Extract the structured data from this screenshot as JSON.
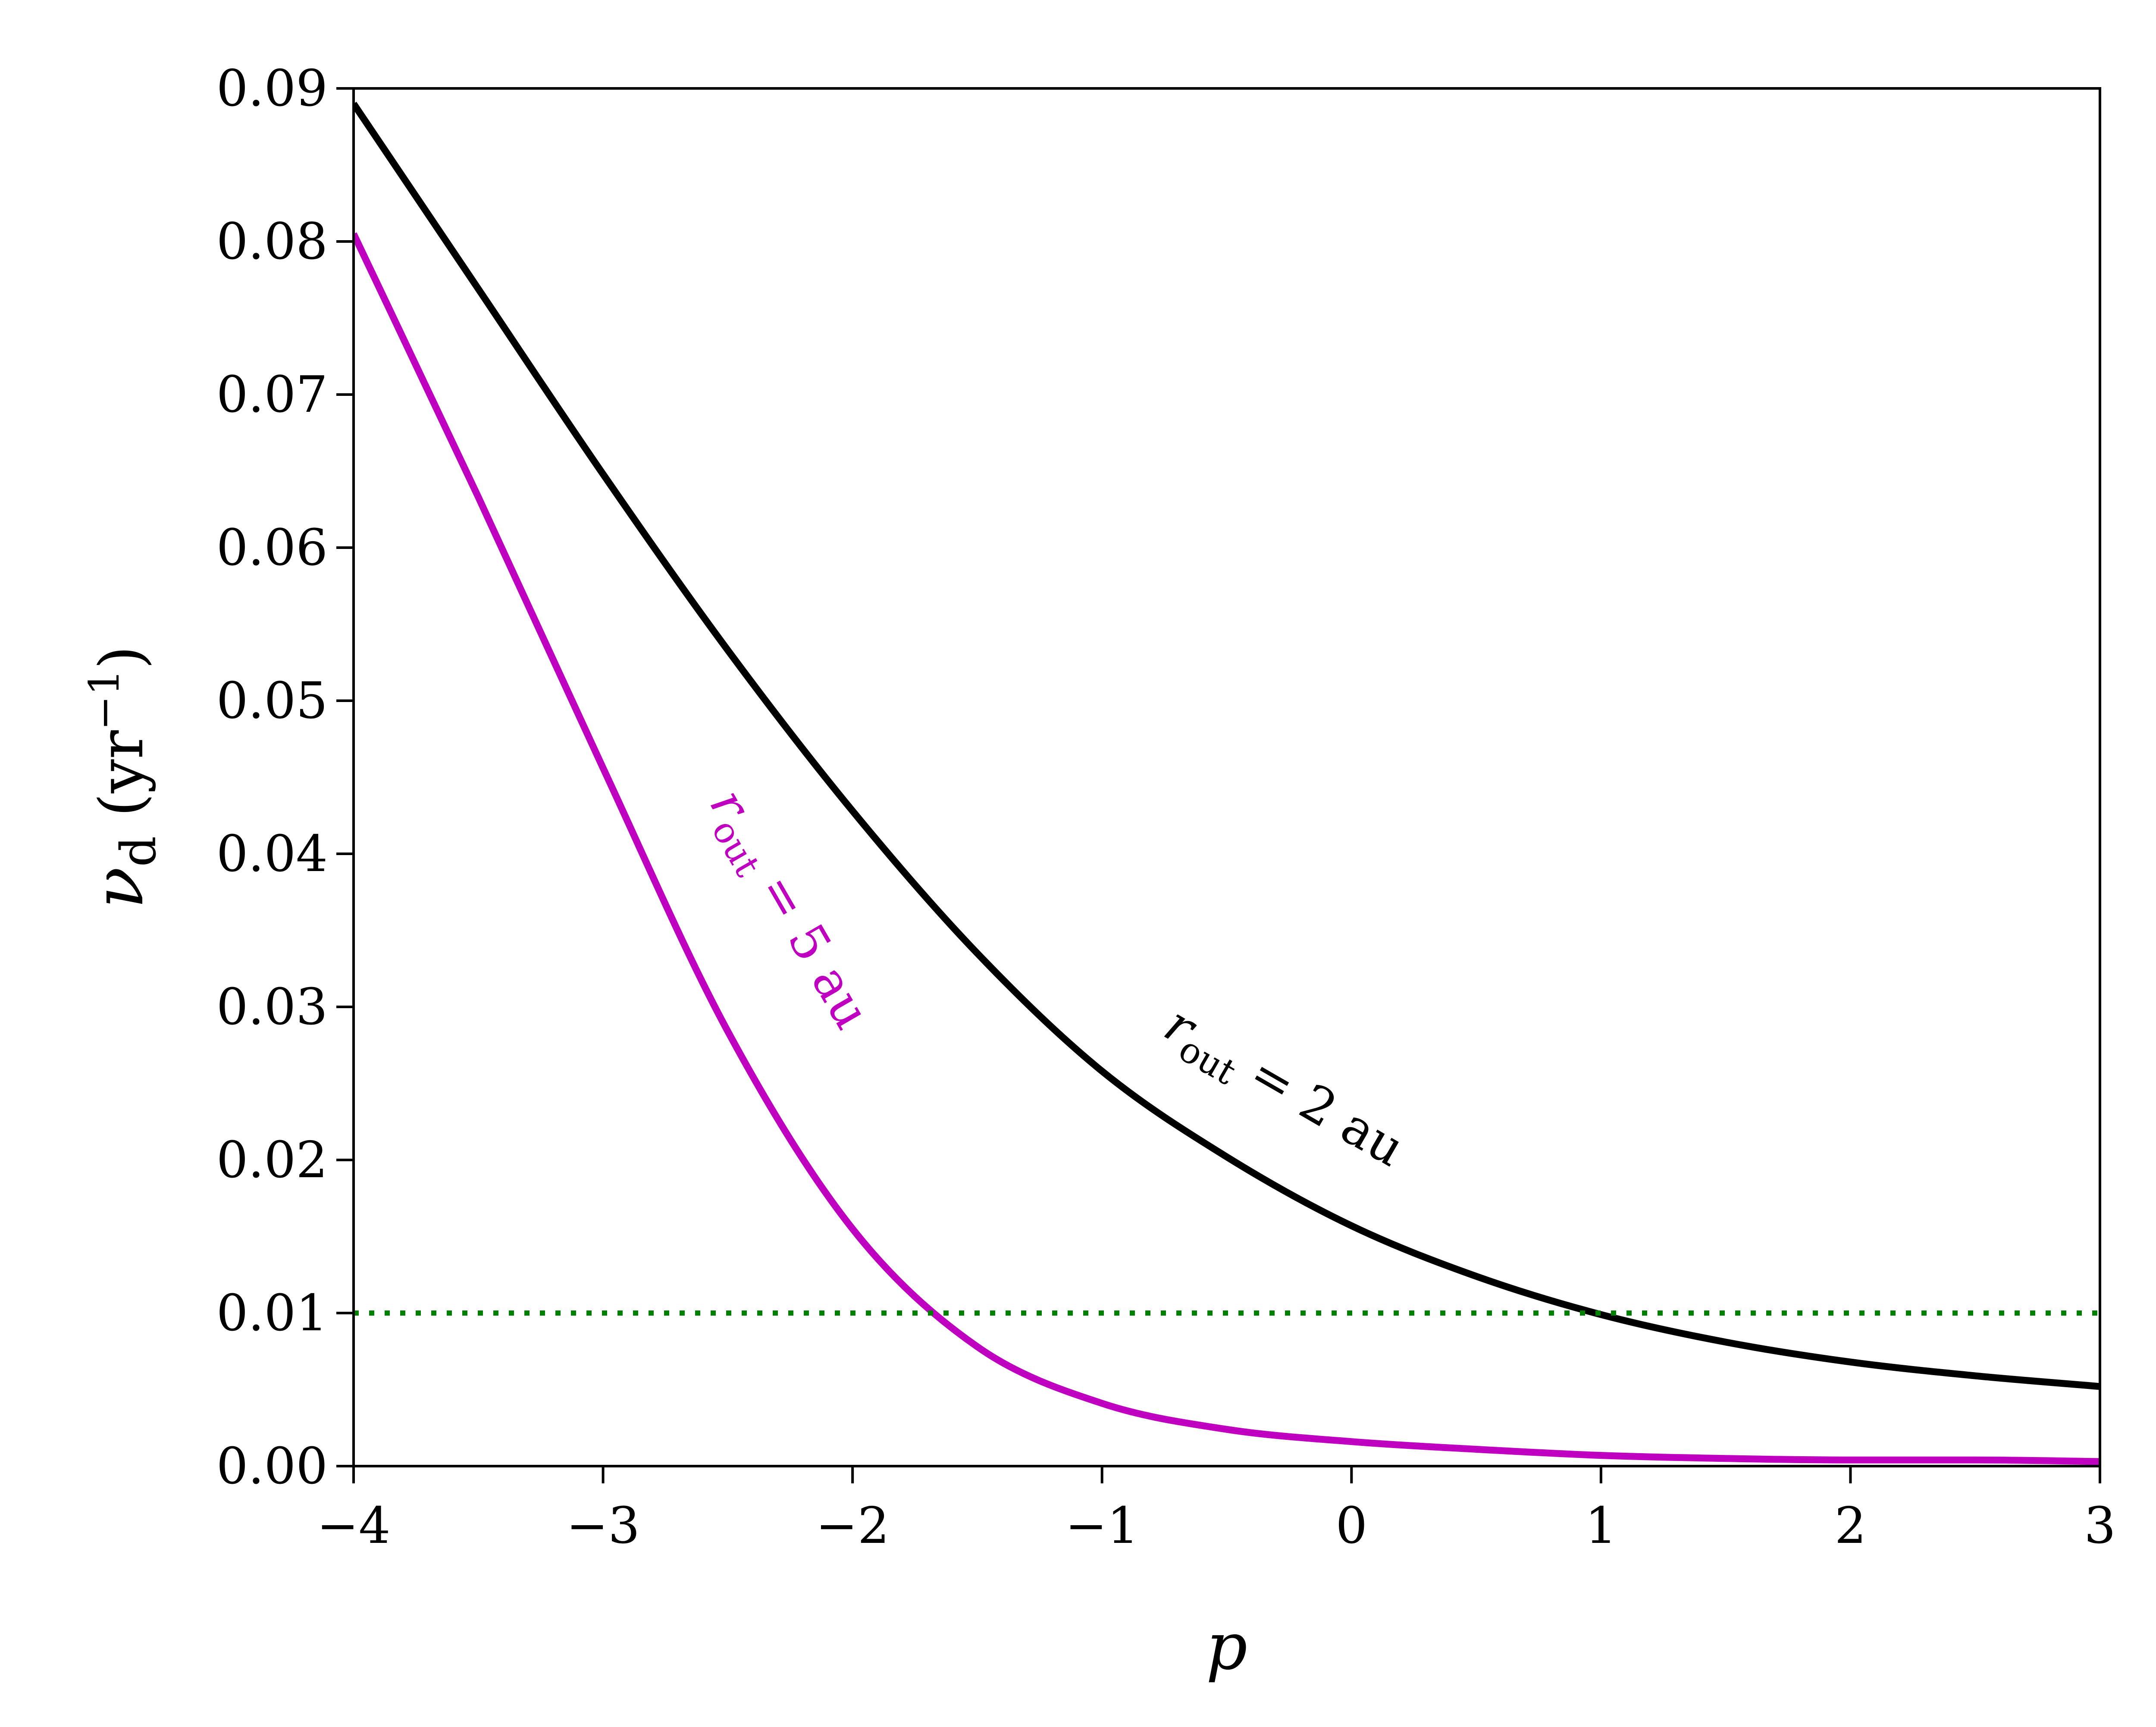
{
  "chart_data": {
    "type": "line",
    "xlabel": "p",
    "ylabel": {
      "main": "ν",
      "sub": "d",
      "unit_open": "(yr",
      "unit_exp": "−1",
      "unit_close": ")"
    },
    "xlim": [
      -4,
      3
    ],
    "ylim": [
      0,
      0.09
    ],
    "x_ticks": [
      -4,
      -3,
      -2,
      -1,
      0,
      1,
      2,
      3
    ],
    "x_tick_labels": [
      "−4",
      "−3",
      "−2",
      "−1",
      "0",
      "1",
      "2",
      "3"
    ],
    "y_ticks": [
      0,
      0.01,
      0.02,
      0.03,
      0.04,
      0.05,
      0.06,
      0.07,
      0.08,
      0.09
    ],
    "y_tick_labels": [
      "0.00",
      "0.01",
      "0.02",
      "0.03",
      "0.04",
      "0.05",
      "0.06",
      "0.07",
      "0.08",
      "0.09"
    ],
    "grid": false,
    "series": [
      {
        "label": {
          "r": "r",
          "sub": "out",
          "rest": " = 2 au"
        },
        "color": "#000000",
        "x": [
          -4,
          -3.5,
          -3,
          -2.5,
          -2,
          -1.5,
          -1,
          -0.5,
          0,
          0.5,
          1,
          1.5,
          2,
          2.5,
          3
        ],
        "y": [
          0.089,
          0.0769,
          0.0648,
          0.0533,
          0.0428,
          0.0335,
          0.0258,
          0.0202,
          0.0157,
          0.0124,
          0.0099,
          0.0081,
          0.0068,
          0.0059,
          0.0052
        ]
      },
      {
        "label": {
          "r": "r",
          "sub": "out",
          "rest": " = 5 au"
        },
        "color": "#c000c0",
        "x": [
          -4,
          -3.5,
          -3,
          -2.5,
          -2,
          -1.5,
          -1,
          -0.5,
          0,
          0.5,
          1,
          1.5,
          2,
          2.5,
          3
        ],
        "y": [
          0.0805,
          0.0633,
          0.0456,
          0.0284,
          0.0155,
          0.0078,
          0.0041,
          0.0024,
          0.0016,
          0.0011,
          0.0007,
          0.0005,
          0.0004,
          0.0004,
          0.0003
        ]
      },
      {
        "style": "dotted",
        "color": "#008000",
        "x": [
          -4,
          3
        ],
        "y": [
          0.01,
          0.01
        ]
      }
    ]
  }
}
